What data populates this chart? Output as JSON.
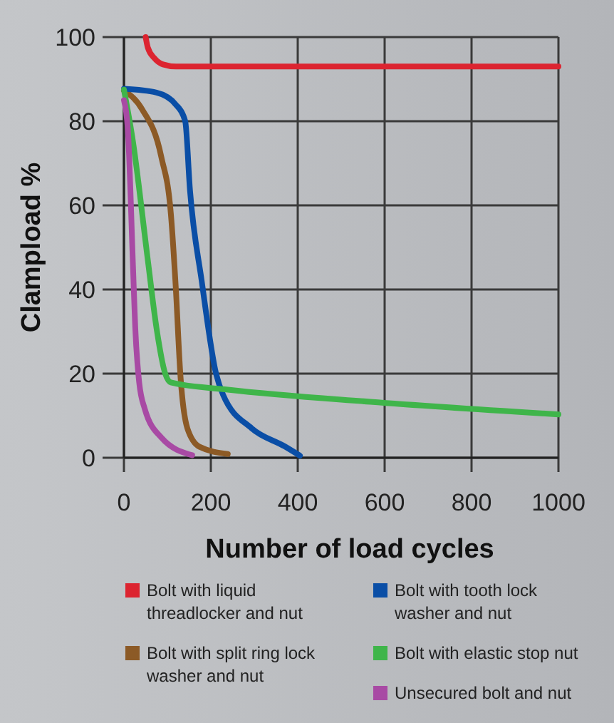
{
  "chart_data": {
    "type": "line",
    "xlabel": "Number of load cycles",
    "ylabel": "Clampload %",
    "xlim": [
      0,
      1000
    ],
    "ylim": [
      0,
      100
    ],
    "xticks": [
      0,
      200,
      400,
      600,
      800,
      1000
    ],
    "yticks": [
      0,
      20,
      40,
      60,
      80,
      100
    ],
    "grid": true,
    "legend": "bottom",
    "marker": "none",
    "line_style": "solid",
    "series": [
      {
        "name": "Bolt with liquid threadlocker and nut",
        "color": "#dc2430",
        "x": [
          50,
          55,
          70,
          90,
          120,
          1000
        ],
        "values": [
          100,
          97.5,
          95,
          93.5,
          93,
          93
        ]
      },
      {
        "name": "Bolt with split ring lock washer and nut",
        "color": "#8c5a26",
        "x": [
          0,
          42,
          86,
          108,
          119,
          130,
          146,
          174,
          239
        ],
        "values": [
          87.3,
          82.8,
          71.5,
          58,
          41,
          19.6,
          7,
          2.6,
          0.9
        ]
      },
      {
        "name": "Bolt with tooth lock washer and nut",
        "color": "#0a4ea6",
        "x": [
          0,
          75,
          119,
          141,
          152,
          179,
          212,
          228,
          294,
          370,
          405
        ],
        "values": [
          87.7,
          86.8,
          84,
          80,
          63.6,
          42,
          20,
          15,
          7,
          2.7,
          0.5
        ]
      },
      {
        "name": "Bolt with elastic stop nut",
        "color": "#3fb54a",
        "x": [
          0,
          21,
          54,
          75,
          95,
          108,
          239,
          567,
          1000
        ],
        "values": [
          87.5,
          75,
          47.8,
          30.8,
          20,
          17.9,
          16.2,
          13.3,
          10.3
        ]
      },
      {
        "name": "Unsecured bolt and nut",
        "color": "#a84aa4",
        "x": [
          0,
          9,
          21,
          26,
          35,
          48,
          86,
          157
        ],
        "values": [
          85,
          78,
          45,
          31,
          18,
          11.6,
          4.8,
          0.6
        ]
      }
    ]
  }
}
